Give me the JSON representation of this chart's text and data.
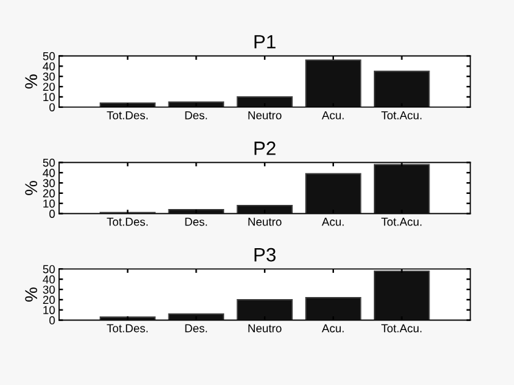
{
  "chart_data": [
    {
      "type": "bar",
      "title": "P1",
      "ylabel": "%",
      "categories": [
        "Tot.Des.",
        "Des.",
        "Neutro",
        "Acu.",
        "Tot.Acu."
      ],
      "values": [
        4,
        5,
        10,
        46,
        35
      ],
      "color": "#111111",
      "ylim": [
        0,
        50
      ],
      "yticks": [
        0,
        10,
        20,
        30,
        40,
        50
      ],
      "grid": false
    },
    {
      "type": "bar",
      "title": "P2",
      "ylabel": "%",
      "categories": [
        "Tot.Des.",
        "Des.",
        "Neutro",
        "Acu.",
        "Tot.Acu."
      ],
      "values": [
        1,
        4,
        8,
        39,
        48
      ],
      "color": "#111111",
      "ylim": [
        0,
        50
      ],
      "yticks": [
        0,
        10,
        20,
        30,
        40,
        50
      ],
      "grid": false
    },
    {
      "type": "bar",
      "title": "P3",
      "ylabel": "%",
      "categories": [
        "Tot.Des.",
        "Des.",
        "Neutro",
        "Acu.",
        "Tot.Acu."
      ],
      "values": [
        3,
        6,
        20,
        22,
        48
      ],
      "color": "#111111",
      "ylim": [
        0,
        50
      ],
      "yticks": [
        0,
        10,
        20,
        30,
        40,
        50
      ],
      "grid": false
    }
  ]
}
